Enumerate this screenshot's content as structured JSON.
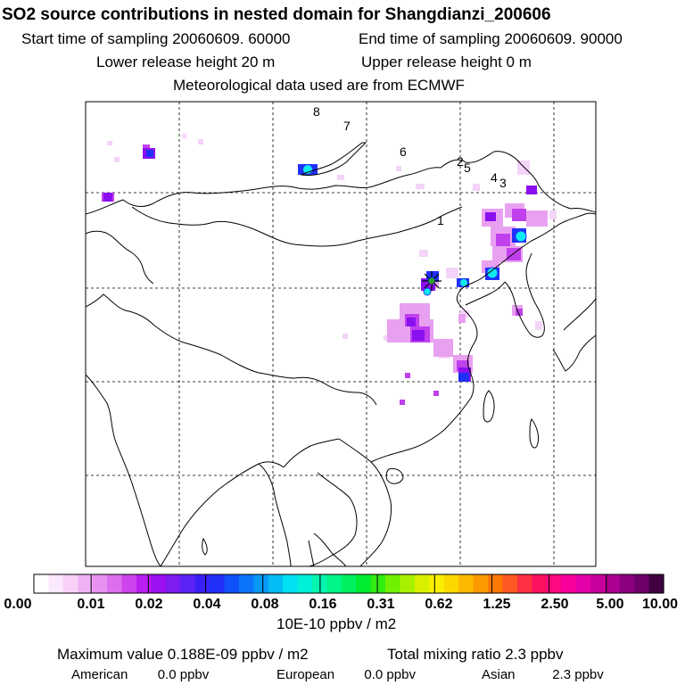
{
  "header": {
    "title": "SO2 source contributions in nested domain for Shangdianzi_200606",
    "start_time": "Start time of sampling 20060609. 60000",
    "end_time": "End time of sampling 20060609. 90000",
    "lower_release": "Lower release height   20 m",
    "upper_release": "Upper release height    0 m",
    "met_data": "Meteorological data used are from ECMWF"
  },
  "map": {
    "trajectory_labels": [
      "8",
      "7",
      "6",
      "5",
      "4",
      "3",
      "2",
      "1"
    ],
    "colors": {
      "coast": "#000000",
      "grid": "#000000",
      "station_marker": "#2aa02a"
    }
  },
  "colorbar": {
    "colors": [
      "#ffffff",
      "#fce8fc",
      "#f8d0f8",
      "#f0b0f4",
      "#e890f0",
      "#dc70ec",
      "#cc44ec",
      "#b81ef0",
      "#9c10f0",
      "#7c1cf0",
      "#5a24f4",
      "#3a20f4",
      "#2030f8",
      "#1050f8",
      "#0c74f8",
      "#0898f8",
      "#04bcf4",
      "#00e0f0",
      "#00f0d8",
      "#00f4b0",
      "#00f488",
      "#00f060",
      "#00ec30",
      "#30ec10",
      "#70f000",
      "#a8f000",
      "#d8f000",
      "#f8f000",
      "#fcd800",
      "#fcb800",
      "#fc9800",
      "#fc7800",
      "#fc5820",
      "#fc3040",
      "#fc1060",
      "#fc0880",
      "#f8009c",
      "#e400a8",
      "#c8009c",
      "#ac0090",
      "#8c0080",
      "#6c0068",
      "#400040"
    ],
    "ticks": [
      "0.00",
      "0.01",
      "0.02",
      "0.04",
      "0.08",
      "0.16",
      "0.31",
      "0.62",
      "1.25",
      "2.50",
      "5.00",
      "10.00"
    ],
    "units": "10E-10 ppbv / m2"
  },
  "summary": {
    "max_value": "Maximum value  0.188E-09 ppbv / m2",
    "total_mixing": "Total mixing ratio      2.3 ppbv",
    "american_label": "American",
    "american_value": "0.0 ppbv",
    "european_label": "European",
    "european_value": "0.0 ppbv",
    "asian_label": "Asian",
    "asian_value": "2.3 ppbv"
  }
}
